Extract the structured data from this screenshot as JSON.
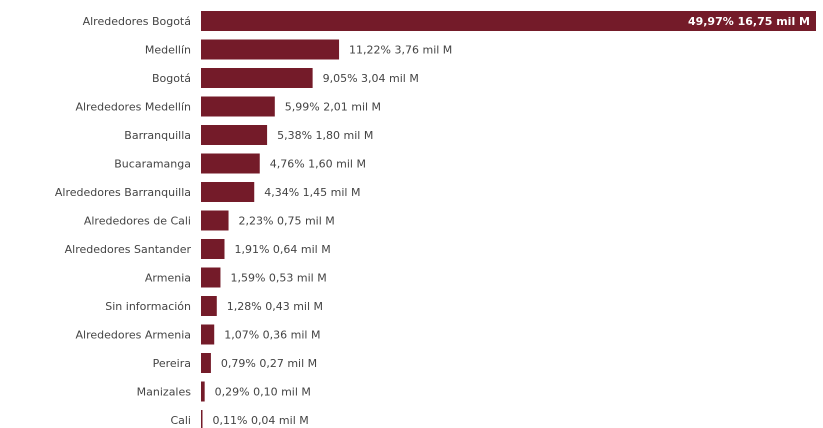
{
  "chart_data": {
    "type": "bar",
    "orientation": "horizontal",
    "categories": [
      "Alrededores Bogotá",
      "Medellín",
      "Bogotá",
      "Alrededores Medellín",
      "Barranquilla",
      "Bucaramanga",
      "Alrededores Barranquilla",
      "Alrededores de Cali",
      "Alrededores Santander",
      "Armenia",
      "Sin información",
      "Alrededores Armenia",
      "Pereira",
      "Manizales",
      "Cali"
    ],
    "values": [
      16.75,
      3.76,
      3.04,
      2.01,
      1.8,
      1.6,
      1.45,
      0.75,
      0.64,
      0.53,
      0.43,
      0.36,
      0.27,
      0.1,
      0.04
    ],
    "percentages": [
      "49,97%",
      "11,22%",
      "9,05%",
      "5,99%",
      "5,38%",
      "4,76%",
      "4,34%",
      "2,23%",
      "1,91%",
      "1,59%",
      "1,28%",
      "1,07%",
      "0,79%",
      "0,29%",
      "0,11%"
    ],
    "data_labels": [
      "49,97% 16,75 mil M",
      "11,22% 3,76 mil M",
      "9,05% 3,04 mil M",
      "5,99% 2,01 mil M",
      "5,38% 1,80 mil M",
      "4,76% 1,60 mil M",
      "4,34% 1,45 mil M",
      "2,23% 0,75 mil M",
      "1,91% 0,64 mil M",
      "1,59% 0,53 mil M",
      "1,28% 0,43 mil M",
      "1,07% 0,36 mil M",
      "0,79% 0,27 mil M",
      "0,29% 0,10 mil M",
      "0,11% 0,04 mil M"
    ],
    "unit": "mil M",
    "xlim": [
      0,
      16.75
    ],
    "grid": false,
    "bar_color": "#741b29"
  }
}
